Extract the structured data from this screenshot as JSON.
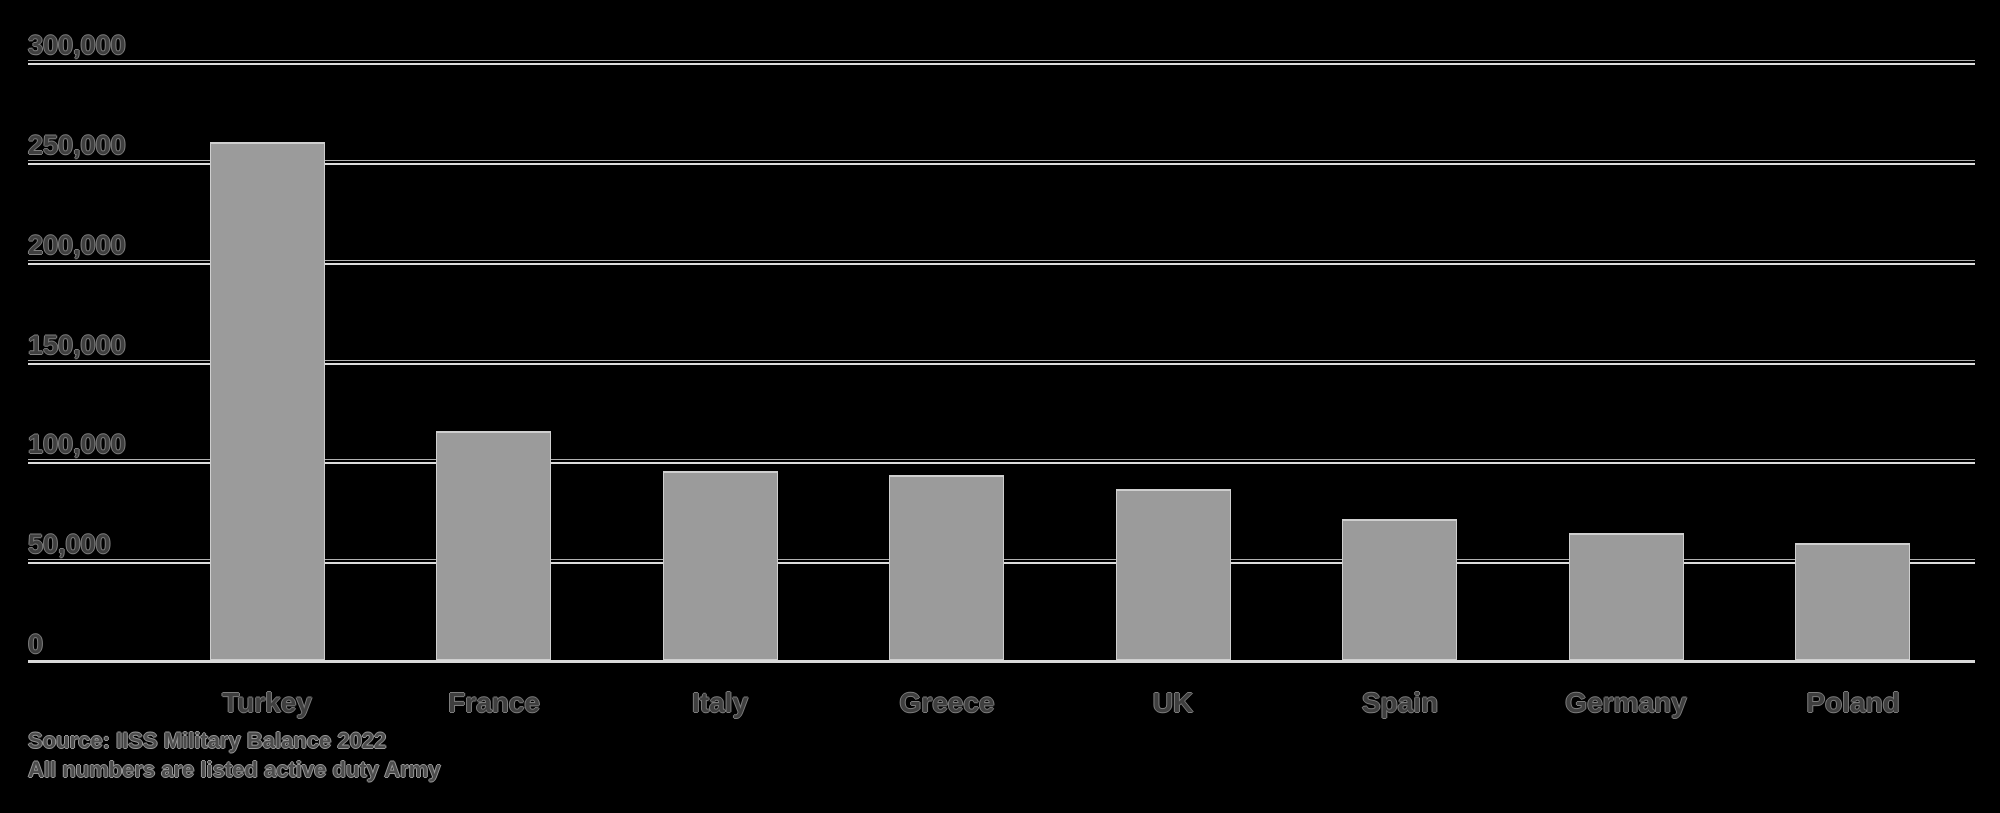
{
  "chart_data": {
    "type": "bar",
    "title": "",
    "xlabel": "",
    "ylabel": "",
    "categories": [
      "Turkey",
      "France",
      "Italy",
      "Greece",
      "UK",
      "Spain",
      "Germany",
      "Poland"
    ],
    "values": [
      261000,
      116000,
      96000,
      94000,
      87000,
      72000,
      65000,
      60000
    ],
    "ylim": [
      0,
      300000
    ],
    "yticks": [
      {
        "value": 300000,
        "label": "300,000"
      },
      {
        "value": 250000,
        "label": "250,000"
      },
      {
        "value": 200000,
        "label": "200,000"
      },
      {
        "value": 150000,
        "label": "150,000"
      },
      {
        "value": 100000,
        "label": "100,000"
      },
      {
        "value": 50000,
        "label": "50,000"
      },
      {
        "value": 0,
        "label": "0"
      }
    ],
    "grid": "horizontal",
    "legend": "none",
    "colors": {
      "background": "#000000",
      "bar_fill": "#9b9b9b",
      "bar_border": "#cfcfcf",
      "gridline": "#dcdcdc",
      "gridline_shadow": "#b0b0b0",
      "axis_line": "#d9d9d9",
      "label_text": "#3f3f3f",
      "source_text": "#4c4c4c"
    }
  },
  "source": {
    "line1": "Source: IISS Military Balance 2022",
    "line2": "All numbers are listed active duty Army"
  }
}
